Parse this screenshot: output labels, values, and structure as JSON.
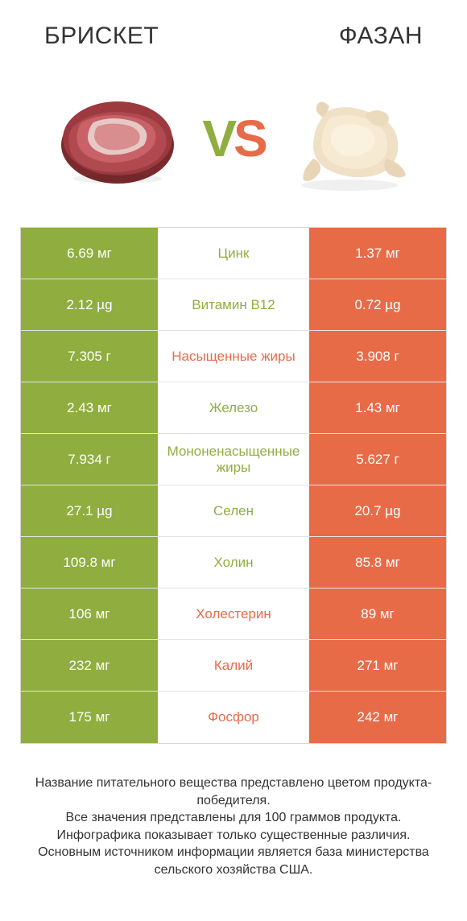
{
  "colors": {
    "green": "#8fae3f",
    "orange": "#e86b48",
    "text": "#333333",
    "border": "#d7d7d7",
    "row_border": "#e3e3e3",
    "white": "#ffffff"
  },
  "header": {
    "left_title": "БРИСКЕТ",
    "right_title": "ФАЗАН",
    "title_fontsize": 30,
    "title_weight": "normal"
  },
  "vs": {
    "v": "V",
    "s": "S",
    "fontsize": 64
  },
  "table": {
    "left_color": "#8fae3f",
    "right_color": "#e86b48",
    "cell_fontsize": 17,
    "rows": [
      {
        "left": "6.69 мг",
        "label": "Цинк",
        "right": "1.37 мг",
        "winner": "left"
      },
      {
        "left": "2.12 µg",
        "label": "Витамин B12",
        "right": "0.72 µg",
        "winner": "left"
      },
      {
        "left": "7.305 г",
        "label": "Насыщенные жиры",
        "right": "3.908 г",
        "winner": "right"
      },
      {
        "left": "2.43 мг",
        "label": "Железо",
        "right": "1.43 мг",
        "winner": "left"
      },
      {
        "left": "7.934 г",
        "label": "Мононенасыщенные жиры",
        "right": "5.627 г",
        "winner": "left"
      },
      {
        "left": "27.1 µg",
        "label": "Селен",
        "right": "20.7 µg",
        "winner": "left"
      },
      {
        "left": "109.8 мг",
        "label": "Холин",
        "right": "85.8 мг",
        "winner": "left"
      },
      {
        "left": "106 мг",
        "label": "Холестерин",
        "right": "89 мг",
        "winner": "right"
      },
      {
        "left": "232 мг",
        "label": "Калий",
        "right": "271 мг",
        "winner": "right"
      },
      {
        "left": "175 мг",
        "label": "Фосфор",
        "right": "242 мг",
        "winner": "right"
      }
    ]
  },
  "footnote": {
    "lines": [
      "Название питательного вещества представлено цветом продукта-победителя.",
      "Все значения представлены для 100 граммов продукта.",
      "Инфографика показывает только существенные различия.",
      "Основным источником информации является база министерства сельского хозяйства США."
    ],
    "fontsize": 16
  }
}
